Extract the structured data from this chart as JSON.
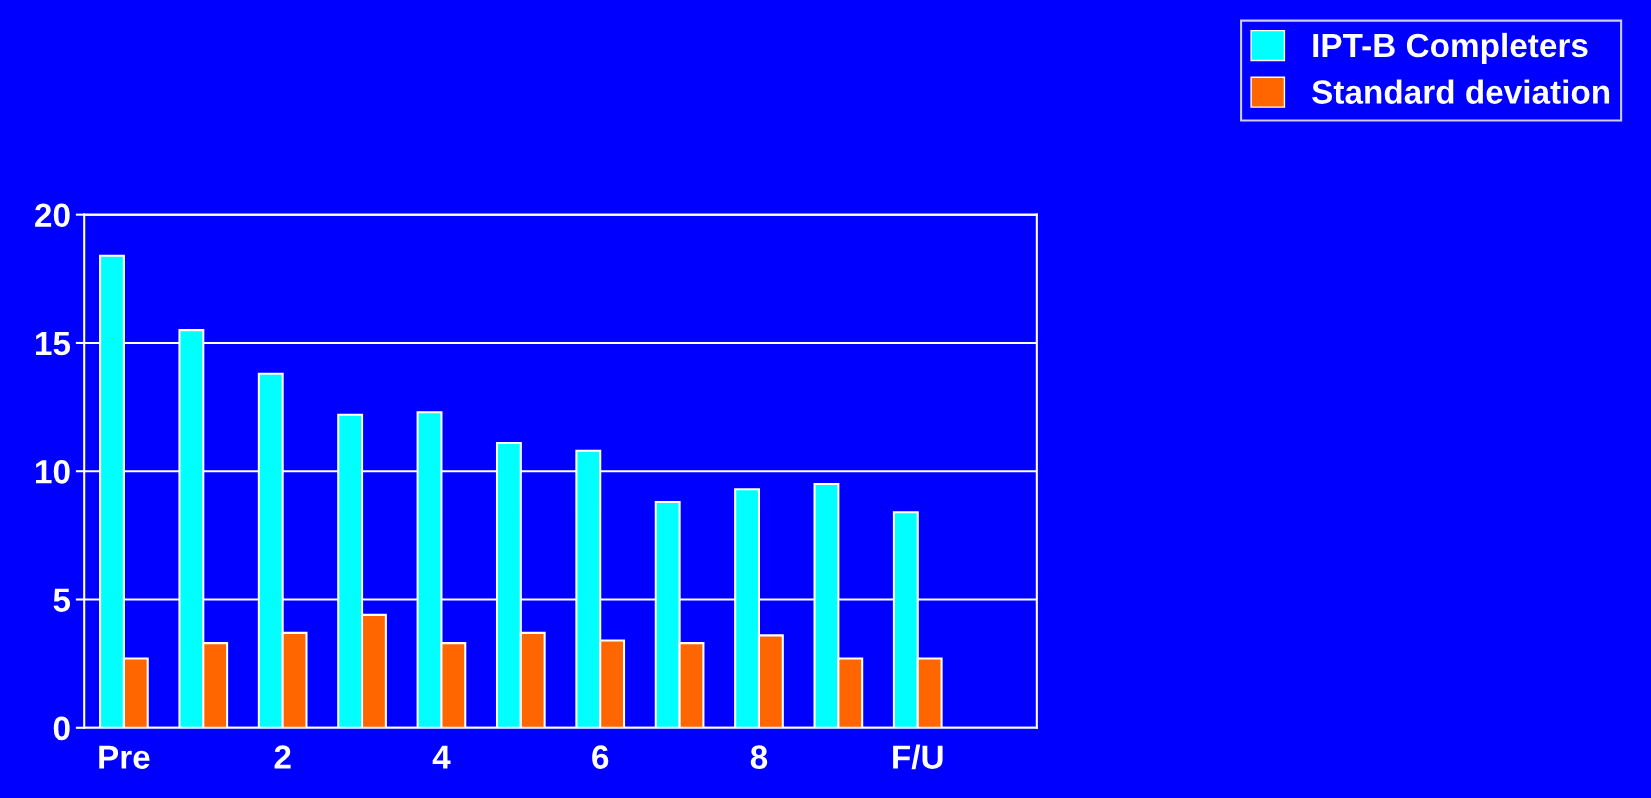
{
  "chart_data": {
    "type": "bar",
    "categories": [
      "Pre",
      null,
      "2",
      null,
      "4",
      null,
      "6",
      null,
      "8",
      null,
      "F/U",
      null
    ],
    "series": [
      {
        "name": "IPT-B Completers",
        "color": "#00ffff",
        "values": [
          18.4,
          15.5,
          13.8,
          12.2,
          12.3,
          11.1,
          10.8,
          8.8,
          9.3,
          9.5,
          8.4,
          null
        ]
      },
      {
        "name": "Standard deviation",
        "color": "#ff6600",
        "values": [
          2.7,
          3.3,
          3.7,
          4.4,
          3.3,
          3.7,
          3.4,
          3.3,
          3.6,
          2.7,
          2.7,
          null
        ]
      }
    ],
    "ylim": [
      0,
      20
    ],
    "yticks": [
      0,
      5,
      10,
      15,
      20
    ],
    "grid": "y",
    "legend": "top right"
  }
}
